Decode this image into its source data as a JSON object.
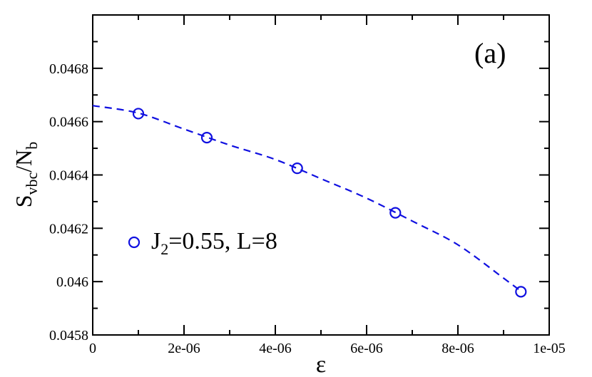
{
  "chart_data": {
    "type": "scatter",
    "panel_label": "(a)",
    "xlabel": "ε",
    "ylabel": {
      "main": "S",
      "sub1": "vbc",
      "sep": "/N",
      "sub2": "b"
    },
    "xlim": [
      0,
      1e-05
    ],
    "ylim": [
      0.0458,
      0.047
    ],
    "x_ticks": [
      {
        "value": 0,
        "label": "0"
      },
      {
        "value": 2e-06,
        "label": "2e-06"
      },
      {
        "value": 4e-06,
        "label": "4e-06"
      },
      {
        "value": 6e-06,
        "label": "6e-06"
      },
      {
        "value": 8e-06,
        "label": "8e-06"
      },
      {
        "value": 1e-05,
        "label": "1e-05"
      }
    ],
    "y_ticks": [
      {
        "value": 0.0458,
        "label": "0.0458"
      },
      {
        "value": 0.046,
        "label": "0.046"
      },
      {
        "value": 0.0462,
        "label": "0.0462"
      },
      {
        "value": 0.0464,
        "label": "0.0464"
      },
      {
        "value": 0.0466,
        "label": "0.0466"
      },
      {
        "value": 0.0468,
        "label": "0.0468"
      }
    ],
    "series": [
      {
        "name": "J2=0.55, L=8",
        "marker": "open-circle",
        "color": "#1010e0",
        "points": [
          {
            "x": 1e-06,
            "y": 0.04663
          },
          {
            "x": 2.5e-06,
            "y": 0.04654
          },
          {
            "x": 4.48e-06,
            "y": 0.046425
          },
          {
            "x": 6.63e-06,
            "y": 0.046258
          },
          {
            "x": 9.38e-06,
            "y": 0.045962
          }
        ]
      }
    ],
    "fit": {
      "style": "dashed",
      "color": "#1010e0",
      "x": [
        0,
        1e-06,
        2e-06,
        3e-06,
        4e-06,
        5e-06,
        6e-06,
        7e-06,
        8e-06,
        9e-06,
        9.4e-06
      ],
      "y": [
        0.04666,
        0.046632,
        0.046572,
        0.046512,
        0.046458,
        0.046386,
        0.046313,
        0.046227,
        0.046138,
        0.046013,
        0.045962
      ]
    },
    "legend": {
      "position": "lower-left",
      "label": {
        "main": "J",
        "sub": "2",
        "rest": "=0.55, L=8"
      }
    },
    "grid": false
  }
}
